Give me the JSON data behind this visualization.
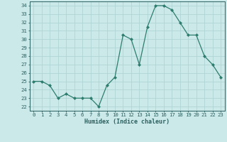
{
  "x": [
    0,
    1,
    2,
    3,
    4,
    5,
    6,
    7,
    8,
    9,
    10,
    11,
    12,
    13,
    14,
    15,
    16,
    17,
    18,
    19,
    20,
    21,
    22,
    23
  ],
  "y": [
    25,
    25,
    24.5,
    23,
    23.5,
    23,
    23,
    23,
    22,
    24.5,
    25.5,
    30.5,
    30,
    27,
    31.5,
    34,
    34,
    33.5,
    32,
    30.5,
    30.5,
    28,
    27,
    25.5
  ],
  "line_color": "#2d7d6e",
  "marker": "D",
  "marker_size": 2.0,
  "line_width": 0.9,
  "bg_color": "#cce9e9",
  "grid_color": "#b0d4d4",
  "tick_color": "#2d6060",
  "xlabel": "Humidex (Indice chaleur)",
  "xlim": [
    -0.5,
    23.5
  ],
  "ylim": [
    21.5,
    34.5
  ],
  "yticks": [
    22,
    23,
    24,
    25,
    26,
    27,
    28,
    29,
    30,
    31,
    32,
    33,
    34
  ],
  "xticks": [
    0,
    1,
    2,
    3,
    4,
    5,
    6,
    7,
    8,
    9,
    10,
    11,
    12,
    13,
    14,
    15,
    16,
    17,
    18,
    19,
    20,
    21,
    22,
    23
  ],
  "xtick_labels": [
    "0",
    "1",
    "2",
    "3",
    "4",
    "5",
    "6",
    "7",
    "8",
    "9",
    "10",
    "11",
    "12",
    "13",
    "14",
    "15",
    "16",
    "17",
    "18",
    "19",
    "20",
    "21",
    "22",
    "23"
  ],
  "font_family": "monospace",
  "xlabel_fontsize": 6.0,
  "tick_fontsize": 5.2
}
